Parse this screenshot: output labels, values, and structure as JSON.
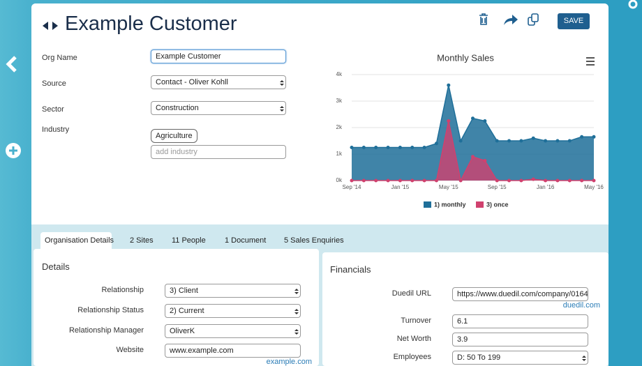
{
  "header": {
    "title": "Example Customer",
    "save": "SAVE"
  },
  "form": [
    {
      "label": "Org Name",
      "value": "Example Customer"
    },
    {
      "label": "Source",
      "value": "Contact - Oliver Kohll"
    },
    {
      "label": "Sector",
      "value": "Construction"
    },
    {
      "label": "Industry",
      "tag": "Agriculture",
      "placeholder": "add industry"
    }
  ],
  "chart_data": {
    "type": "area",
    "title": "Monthly Sales",
    "categories": [
      "Sep '14",
      null,
      null,
      null,
      "Jan '15",
      null,
      null,
      null,
      "May '15",
      null,
      null,
      null,
      "Sep '15",
      null,
      null,
      null,
      "Jan '16",
      null,
      null,
      null,
      "May '16"
    ],
    "series": [
      {
        "name": "1) monthly",
        "color": "#1f6f99",
        "values": [
          1.25,
          1.25,
          1.25,
          1.25,
          1.25,
          1.25,
          1.25,
          1.4,
          3.6,
          1.5,
          2.35,
          2.25,
          1.5,
          1.5,
          1.5,
          1.6,
          1.5,
          1.5,
          1.5,
          1.65,
          1.65
        ]
      },
      {
        "name": "3) once",
        "color": "#d0416e",
        "values": [
          0,
          0,
          0,
          0,
          0,
          0,
          0,
          0,
          2.25,
          0,
          0.9,
          0.75,
          0,
          0,
          0,
          0.05,
          0,
          0,
          0,
          0,
          0
        ]
      }
    ],
    "ylim": [
      0,
      4
    ],
    "yticks": [
      {
        "value": 0,
        "label": "0k"
      },
      {
        "value": 1,
        "label": "1k"
      },
      {
        "value": 2,
        "label": "2k"
      },
      {
        "value": 3,
        "label": "3k"
      },
      {
        "value": 4,
        "label": "4k"
      }
    ],
    "grid": true,
    "legend": "bottom"
  },
  "tabs": [
    "Organisation Details",
    "2 Sites",
    "11 People",
    "1 Document",
    "5 Sales Enquiries"
  ],
  "details": {
    "title": "Details",
    "fields": [
      {
        "label": "Relationship",
        "value": "3) Client"
      },
      {
        "label": "Relationship Status",
        "value": "2) Current"
      },
      {
        "label": "Relationship Manager",
        "value": "OliverK"
      },
      {
        "label": "Website",
        "value": "www.example.com",
        "link": "example.com"
      }
    ]
  },
  "financials": {
    "title": "Financials",
    "fields": [
      {
        "label": "Duedil URL",
        "value": "https://www.duedil.com/company/0164",
        "link": "duedil.com"
      },
      {
        "label": "Turnover",
        "value": "6.1"
      },
      {
        "label": "Net Worth",
        "value": "3.9"
      },
      {
        "label": "Employees",
        "value": "D: 50 To 199"
      }
    ]
  }
}
